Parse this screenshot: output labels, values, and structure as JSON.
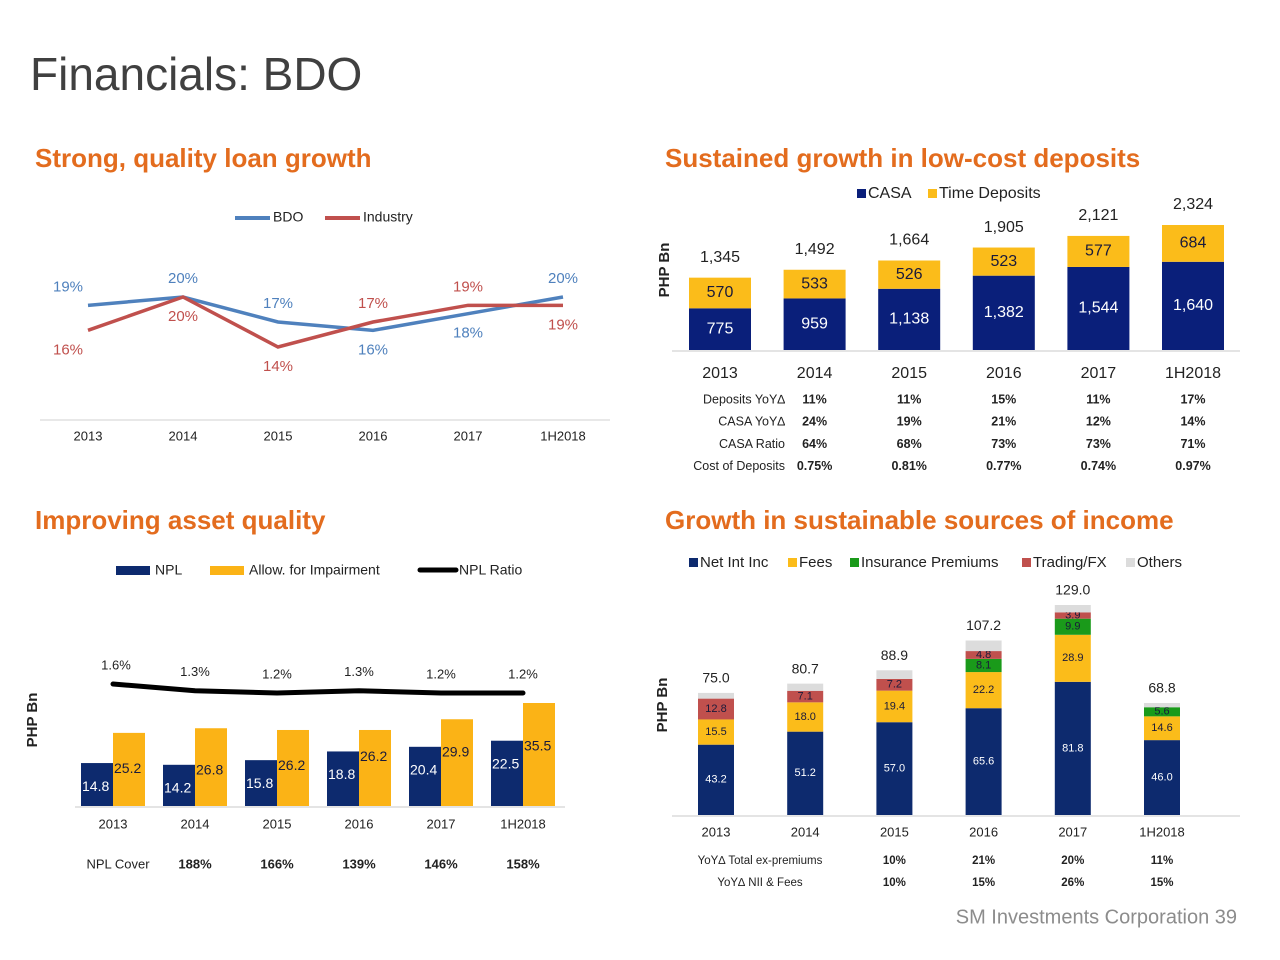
{
  "title": "Financials: BDO",
  "footer": "SM Investments Corporation 39",
  "chart_data": [
    {
      "type": "line",
      "title": "Strong, quality loan growth",
      "categories": [
        "2013",
        "2014",
        "2015",
        "2016",
        "2017",
        "1H2018"
      ],
      "series": [
        {
          "name": "BDO",
          "color": "#4f81bd",
          "values": [
            19,
            20,
            17,
            16,
            18,
            20
          ],
          "value_labels": [
            "19%",
            "20%",
            "17%",
            "16%",
            "18%",
            "20%"
          ]
        },
        {
          "name": "Industry",
          "color": "#c0504d",
          "values": [
            16,
            20,
            14,
            17,
            19,
            19
          ],
          "value_labels": [
            "16%",
            "20%",
            "14%",
            "17%",
            "19%",
            "19%"
          ]
        }
      ]
    },
    {
      "type": "bar",
      "stacked": true,
      "title": "Sustained growth in low-cost deposits",
      "y_label": "PHP Bn",
      "categories": [
        "2013",
        "2014",
        "2015",
        "2016",
        "2017",
        "1H2018"
      ],
      "series": [
        {
          "name": "CASA",
          "color": "#0a1f7a",
          "values": [
            775,
            959,
            1138,
            1382,
            1544,
            1640
          ],
          "value_labels": [
            "775",
            "959",
            "1,138",
            "1,382",
            "1,544",
            "1,640"
          ]
        },
        {
          "name": "Time Deposits",
          "color": "#fbbc1a",
          "values": [
            570,
            533,
            526,
            523,
            577,
            684
          ]
        }
      ],
      "totals": {
        "values": [
          1345,
          1492,
          1664,
          1905,
          2121,
          2324
        ],
        "value_labels": [
          "1,345",
          "1,492",
          "1,664",
          "1,905",
          "2,121",
          "2,324"
        ]
      },
      "table": {
        "rows": [
          {
            "label": "Deposits YoY∆",
            "cells": [
              null,
              "11%",
              "11%",
              "15%",
              "11%",
              "17%"
            ]
          },
          {
            "label": "CASA YoY∆",
            "cells": [
              null,
              "24%",
              "19%",
              "21%",
              "12%",
              "14%"
            ]
          },
          {
            "label": "CASA Ratio",
            "cells": [
              null,
              "64%",
              "68%",
              "73%",
              "73%",
              "71%"
            ]
          },
          {
            "label": "Cost of Deposits",
            "cells": [
              null,
              "0.75%",
              "0.81%",
              "0.77%",
              "0.74%",
              "0.97%"
            ]
          }
        ]
      }
    },
    {
      "type": "combo",
      "title": "Improving asset quality",
      "y_label": "PHP Bn",
      "categories": [
        "2013",
        "2014",
        "2015",
        "2016",
        "2017",
        "1H2018"
      ],
      "series": [
        {
          "name": "NPL",
          "color": "#0d2a6e",
          "kind": "bar",
          "values": [
            14.8,
            14.2,
            15.8,
            18.8,
            20.4,
            22.5
          ]
        },
        {
          "name": "Allow. for Impairment",
          "color": "#fbb316",
          "kind": "bar",
          "values": [
            25.2,
            26.8,
            26.2,
            26.2,
            29.9,
            35.5
          ]
        },
        {
          "name": "NPL Ratio",
          "color": "#000000",
          "kind": "line",
          "axis": "y2",
          "values": [
            1.6,
            1.3,
            1.2,
            1.3,
            1.2,
            1.2
          ],
          "value_labels": [
            "1.6%",
            "1.3%",
            "1.2%",
            "1.3%",
            "1.2%",
            "1.2%"
          ]
        }
      ],
      "table": {
        "rows": [
          {
            "label": "NPL Cover",
            "cells": [
              null,
              "188%",
              "166%",
              "139%",
              "146%",
              "158%"
            ]
          }
        ]
      }
    },
    {
      "type": "bar",
      "stacked": true,
      "title": "Growth in sustainable sources of income",
      "y_label": "PHP Bn",
      "categories": [
        "2013",
        "2014",
        "2015",
        "2016",
        "2017",
        "1H2018"
      ],
      "series": [
        {
          "name": "Net Int Inc",
          "color": "#0d2a6e",
          "values": [
            43.2,
            51.2,
            57.0,
            65.6,
            81.8,
            46.0
          ],
          "value_labels": [
            "43.2",
            "51.2",
            "57.0",
            "65.6",
            "81.8",
            "46.0"
          ]
        },
        {
          "name": "Fees",
          "color": "#fbbc1a",
          "values": [
            15.5,
            18.0,
            19.4,
            22.2,
            28.9,
            14.6
          ],
          "value_labels": [
            "15.5",
            "18.0",
            "19.4",
            "22.2",
            "28.9",
            "14.6"
          ]
        },
        {
          "name": "Insurance Premiums",
          "color": "#1a9a1a",
          "values": [
            null,
            null,
            null,
            8.1,
            9.9,
            5.6
          ],
          "value_labels": [
            null,
            null,
            null,
            "8.1",
            "9.9",
            "5.6"
          ]
        },
        {
          "name": "Trading/FX",
          "color": "#c0504d",
          "values": [
            12.8,
            7.1,
            7.2,
            4.8,
            3.9,
            null
          ],
          "value_labels": [
            "12.8",
            "7.1",
            "7.2",
            "4.8",
            "3.9",
            null
          ]
        },
        {
          "name": "Others",
          "color": "#dcdcdc",
          "values": [
            3.5,
            4.4,
            5.3,
            6.5,
            4.5,
            2.6
          ]
        }
      ],
      "totals": {
        "values": [
          75.0,
          80.7,
          88.9,
          107.2,
          129.0,
          68.8
        ],
        "value_labels": [
          "75.0",
          "80.7",
          "88.9",
          "107.2",
          "129.0",
          "68.8"
        ]
      },
      "table": {
        "rows": [
          {
            "label": "YoY∆ Total ex-premiums",
            "cells": [
              null,
              null,
              "10%",
              "21%",
              "20%",
              "11%"
            ]
          },
          {
            "label": "YoY∆ NII & Fees",
            "cells": [
              null,
              null,
              "10%",
              "15%",
              "26%",
              "15%"
            ]
          }
        ]
      }
    }
  ]
}
